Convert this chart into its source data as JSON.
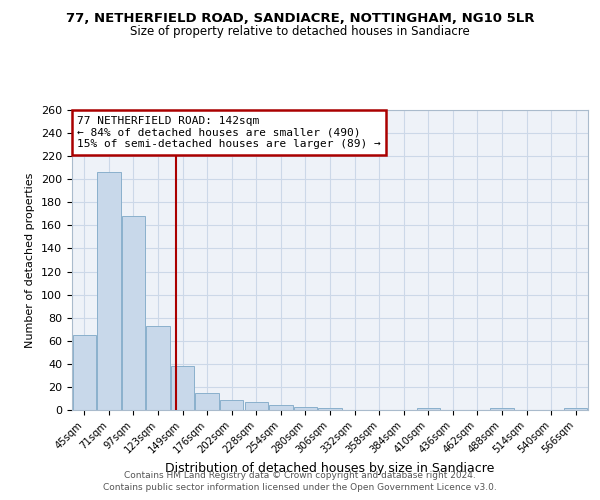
{
  "title": "77, NETHERFIELD ROAD, SANDIACRE, NOTTINGHAM, NG10 5LR",
  "subtitle": "Size of property relative to detached houses in Sandiacre",
  "xlabel": "Distribution of detached houses by size in Sandiacre",
  "ylabel": "Number of detached properties",
  "categories": [
    "45sqm",
    "71sqm",
    "97sqm",
    "123sqm",
    "149sqm",
    "176sqm",
    "202sqm",
    "228sqm",
    "254sqm",
    "280sqm",
    "306sqm",
    "332sqm",
    "358sqm",
    "384sqm",
    "410sqm",
    "436sqm",
    "462sqm",
    "488sqm",
    "514sqm",
    "540sqm",
    "566sqm"
  ],
  "values": [
    65,
    206,
    168,
    73,
    38,
    15,
    9,
    7,
    4,
    3,
    2,
    0,
    0,
    0,
    2,
    0,
    0,
    2,
    0,
    0,
    2
  ],
  "bar_color": "#c8d8ea",
  "bar_edge_color": "#8ab0cc",
  "annotation_text_line1": "77 NETHERFIELD ROAD: 142sqm",
  "annotation_text_line2": "← 84% of detached houses are smaller (490)",
  "annotation_text_line3": "15% of semi-detached houses are larger (89) →",
  "vline_color": "#aa0000",
  "annotation_box_edgecolor": "#aa0000",
  "grid_color": "#ccd8e8",
  "bg_color": "#eef2f8",
  "footer_line1": "Contains HM Land Registry data © Crown copyright and database right 2024.",
  "footer_line2": "Contains public sector information licensed under the Open Government Licence v3.0.",
  "ylim": [
    0,
    260
  ],
  "yticks": [
    0,
    20,
    40,
    60,
    80,
    100,
    120,
    140,
    160,
    180,
    200,
    220,
    240,
    260
  ]
}
